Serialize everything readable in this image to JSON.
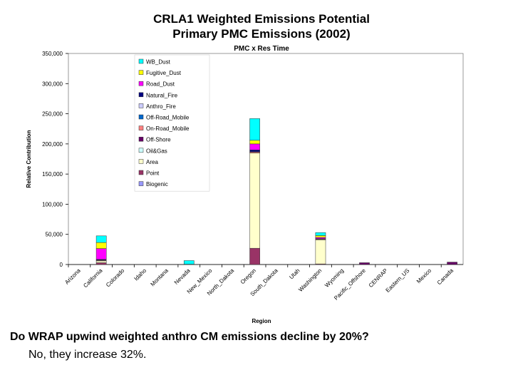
{
  "chart_data": {
    "type": "bar",
    "stacked": true,
    "title": "CRLA1 Weighted Emissions Potential",
    "title_line2": "Primary PMC Emissions (2002)",
    "subtitle": "PMC x Res Time",
    "xlabel": "Region",
    "ylabel": "Relative Contribution",
    "ylim": [
      0,
      350000
    ],
    "yticks": [
      0,
      50000,
      100000,
      150000,
      200000,
      250000,
      300000,
      350000
    ],
    "ytick_labels": [
      "0",
      "50,000",
      "100,000",
      "150,000",
      "200,000",
      "250,000",
      "300,000",
      "350,000"
    ],
    "categories": [
      "Arizona",
      "California",
      "Colorado",
      "Idaho",
      "Montana",
      "Nevada",
      "New_Mexico",
      "North_Dakota",
      "Oregon",
      "South_Dakota",
      "Utah",
      "Washington",
      "Wyoming",
      "Pacific_Offshore",
      "CENRAP",
      "Eastern_US",
      "Mexico",
      "Canada"
    ],
    "legend_position": "top-left",
    "series": [
      {
        "name": "Biogenic",
        "color": "#9999ff",
        "values": [
          0,
          0,
          0,
          0,
          0,
          0,
          0,
          0,
          0,
          0,
          0,
          0,
          0,
          0,
          0,
          0,
          0,
          0
        ]
      },
      {
        "name": "Point",
        "color": "#993366",
        "values": [
          0,
          3000,
          0,
          0,
          0,
          500,
          0,
          0,
          27000,
          0,
          0,
          1000,
          0,
          0,
          0,
          0,
          0,
          0
        ]
      },
      {
        "name": "Area",
        "color": "#ffffcc",
        "values": [
          0,
          3000,
          0,
          0,
          0,
          0,
          0,
          0,
          158000,
          0,
          0,
          40000,
          0,
          0,
          0,
          0,
          0,
          0
        ]
      },
      {
        "name": "Oil&Gas",
        "color": "#ccffff",
        "values": [
          0,
          0,
          0,
          0,
          0,
          0,
          0,
          0,
          0,
          0,
          0,
          0,
          0,
          0,
          0,
          0,
          0,
          0
        ]
      },
      {
        "name": "Off-Shore",
        "color": "#660066",
        "values": [
          0,
          0,
          0,
          0,
          0,
          0,
          0,
          0,
          0,
          0,
          0,
          0,
          0,
          3000,
          0,
          0,
          0,
          4000
        ]
      },
      {
        "name": "On-Road_Mobile",
        "color": "#ff8080",
        "values": [
          0,
          1000,
          0,
          0,
          0,
          0,
          0,
          0,
          1500,
          0,
          0,
          1000,
          0,
          0,
          0,
          0,
          0,
          0
        ]
      },
      {
        "name": "Off-Road_Mobile",
        "color": "#0066cc",
        "values": [
          0,
          500,
          0,
          0,
          0,
          0,
          0,
          0,
          500,
          0,
          0,
          500,
          0,
          0,
          0,
          0,
          0,
          0
        ]
      },
      {
        "name": "Anthro_Fire",
        "color": "#ccccff",
        "values": [
          0,
          0,
          0,
          0,
          0,
          0,
          0,
          0,
          0,
          0,
          0,
          0,
          0,
          0,
          0,
          0,
          0,
          0
        ]
      },
      {
        "name": "Natural_Fire",
        "color": "#000080",
        "values": [
          0,
          1000,
          0,
          0,
          0,
          0,
          0,
          0,
          3000,
          0,
          0,
          500,
          0,
          0,
          0,
          0,
          0,
          0
        ]
      },
      {
        "name": "Road_Dust",
        "color": "#ff00ff",
        "values": [
          0,
          18000,
          0,
          0,
          0,
          0,
          0,
          0,
          10000,
          0,
          0,
          2000,
          0,
          0,
          0,
          0,
          0,
          0
        ]
      },
      {
        "name": "Fugitive_Dust",
        "color": "#ffff00",
        "values": [
          0,
          10000,
          0,
          0,
          0,
          0,
          0,
          0,
          6000,
          0,
          0,
          3000,
          0,
          0,
          0,
          0,
          0,
          0
        ]
      },
      {
        "name": "WB_Dust",
        "color": "#00ffff",
        "values": [
          0,
          11000,
          0,
          0,
          0,
          6000,
          0,
          0,
          36000,
          0,
          0,
          5000,
          0,
          0,
          0,
          0,
          0,
          0
        ]
      }
    ]
  },
  "caption": {
    "question": "Do WRAP upwind weighted anthro CM emissions decline by 20%?",
    "answer": "No, they increase 32%."
  }
}
